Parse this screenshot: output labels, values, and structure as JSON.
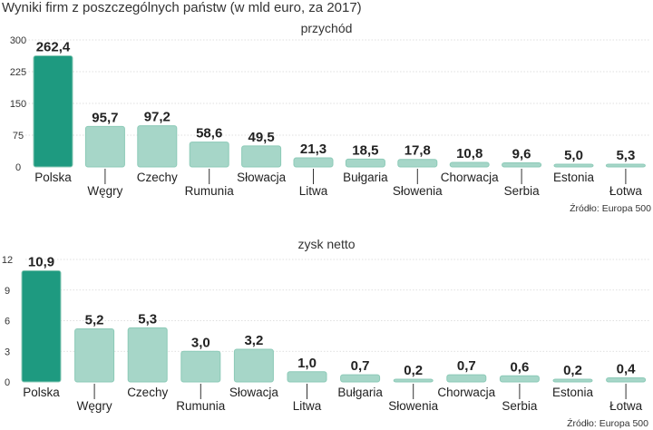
{
  "title": "Wyniki firm z poszczególnych państw (w mld euro, za 2017)",
  "source": "Źródło: Europa 500",
  "colors": {
    "highlight": "#1e9a80",
    "bar": "#a6d6c8",
    "highlight_border": "#8ccab7",
    "bar_border": "#8ccab7"
  },
  "chart_data": [
    {
      "type": "bar",
      "title": "przychód",
      "categories": [
        "Polska",
        "Węgry",
        "Czechy",
        "Rumunia",
        "Słowacja",
        "Litwa",
        "Bułgaria",
        "Słowenia",
        "Chorwacja",
        "Serbia",
        "Estonia",
        "Łotwa"
      ],
      "values": [
        262.4,
        95.7,
        97.2,
        58.6,
        49.5,
        21.3,
        18.5,
        17.8,
        10.8,
        9.6,
        5.0,
        5.3
      ],
      "labels": [
        "262,4",
        "95,7",
        "97,2",
        "58,6",
        "49,5",
        "21,3",
        "18,5",
        "17,8",
        "10,8",
        "9,6",
        "5,0",
        "5,3"
      ],
      "yticks": [
        0,
        75,
        150,
        225,
        300
      ],
      "ylim": [
        0,
        300
      ],
      "xlabel": "",
      "ylabel": "",
      "highlight_index": 0
    },
    {
      "type": "bar",
      "title": "zysk netto",
      "categories": [
        "Polska",
        "Węgry",
        "Czechy",
        "Rumunia",
        "Słowacja",
        "Litwa",
        "Bułgaria",
        "Słowenia",
        "Chorwacja",
        "Serbia",
        "Estonia",
        "Łotwa"
      ],
      "values": [
        10.9,
        5.2,
        5.3,
        3.0,
        3.2,
        1.0,
        0.7,
        0.2,
        0.7,
        0.6,
        0.2,
        0.4
      ],
      "labels": [
        "10,9",
        "5,2",
        "5,3",
        "3,0",
        "3,2",
        "1,0",
        "0,7",
        "0,2",
        "0,7",
        "0,6",
        "0,2",
        "0,4"
      ],
      "yticks": [
        0,
        3,
        6,
        9,
        12
      ],
      "ylim": [
        0,
        12
      ],
      "xlabel": "",
      "ylabel": "",
      "highlight_index": 0
    }
  ]
}
